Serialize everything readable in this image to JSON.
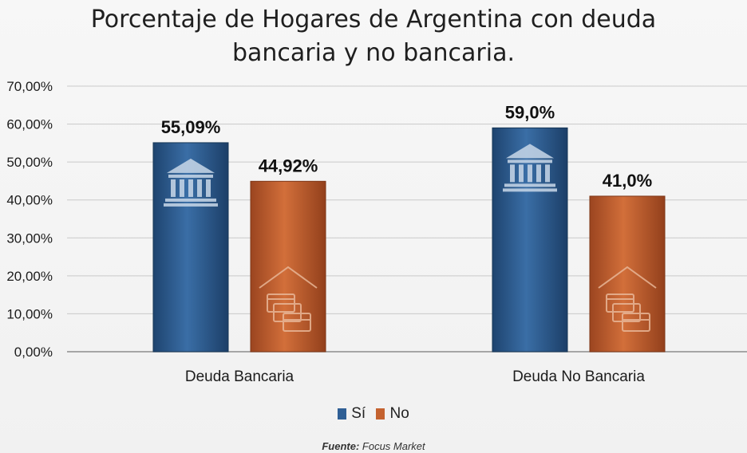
{
  "chart_data": {
    "type": "bar",
    "title": "Porcentaje de Hogares de Argentina con deuda bancaria y no bancaria.",
    "categories": [
      "Deuda Bancaria",
      "Deuda No Bancaria"
    ],
    "series": [
      {
        "name": "Sí",
        "values": [
          55.09,
          59.0
        ],
        "labels": [
          "55,09%",
          "59,0%"
        ],
        "color": "#2f5f95"
      },
      {
        "name": "No",
        "values": [
          44.92,
          41.0
        ],
        "labels": [
          "44,92%",
          "41,0%"
        ],
        "color": "#c4622f"
      }
    ],
    "ylim": [
      0,
      70
    ],
    "yticks": [
      "0,00%",
      "10,00%",
      "20,00%",
      "30,00%",
      "40,00%",
      "50,00%",
      "60,00%",
      "70,00%"
    ],
    "grid": true,
    "legend_position": "bottom",
    "icons": {
      "si": "bank-icon",
      "no": "cards-house-icon"
    }
  },
  "title_lines": [
    "Porcentaje de Hogares de Argentina con deuda",
    "bancaria y no bancaria."
  ],
  "source": {
    "label": "Fuente:",
    "value": "Focus Market"
  }
}
